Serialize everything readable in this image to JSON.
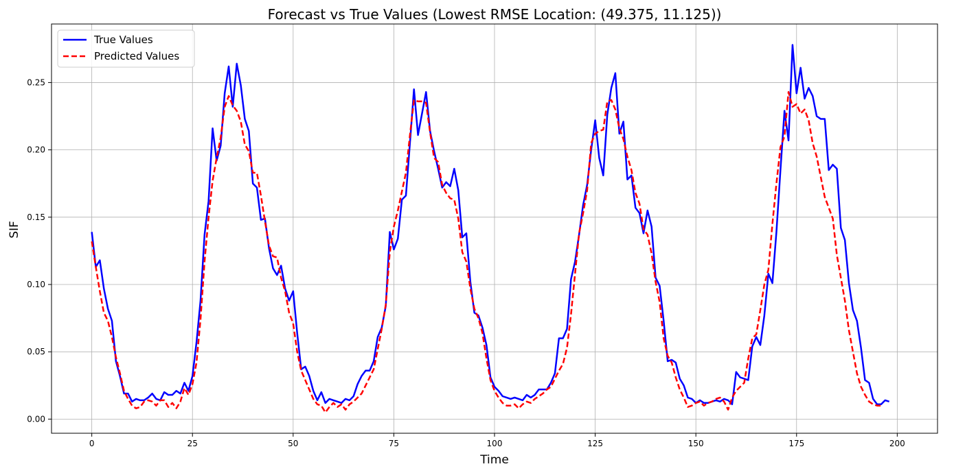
{
  "chart_data": {
    "type": "line",
    "title": "Forecast vs True Values (Lowest RMSE Location: (49.375, 11.125))",
    "xlabel": "Time",
    "ylabel": "SIF",
    "xlim": [
      -10,
      210
    ],
    "ylim": [
      -0.0105,
      0.2935
    ],
    "x_ticks": [
      0,
      25,
      50,
      75,
      100,
      125,
      150,
      175,
      200
    ],
    "x_tick_labels": [
      "0",
      "25",
      "50",
      "75",
      "100",
      "125",
      "150",
      "175",
      "200"
    ],
    "y_ticks": [
      0.0,
      0.05,
      0.1,
      0.15,
      0.2,
      0.25
    ],
    "y_tick_labels": [
      "0.00",
      "0.05",
      "0.10",
      "0.15",
      "0.20",
      "0.25"
    ],
    "grid": true,
    "legend_position": "top-left",
    "series": [
      {
        "name": "True Values",
        "color": "#0000ff",
        "style": "solid",
        "values": [
          0.139,
          0.113,
          0.118,
          0.097,
          0.082,
          0.073,
          0.043,
          0.032,
          0.019,
          0.019,
          0.013,
          0.015,
          0.014,
          0.014,
          0.016,
          0.019,
          0.015,
          0.014,
          0.02,
          0.018,
          0.018,
          0.021,
          0.019,
          0.027,
          0.021,
          0.032,
          0.057,
          0.088,
          0.137,
          0.162,
          0.216,
          0.192,
          0.203,
          0.242,
          0.262,
          0.232,
          0.264,
          0.248,
          0.223,
          0.214,
          0.175,
          0.172,
          0.148,
          0.149,
          0.127,
          0.112,
          0.107,
          0.114,
          0.097,
          0.088,
          0.095,
          0.064,
          0.037,
          0.039,
          0.032,
          0.021,
          0.014,
          0.02,
          0.012,
          0.015,
          0.014,
          0.013,
          0.012,
          0.015,
          0.014,
          0.017,
          0.026,
          0.032,
          0.036,
          0.036,
          0.043,
          0.061,
          0.068,
          0.084,
          0.139,
          0.126,
          0.134,
          0.163,
          0.166,
          0.205,
          0.245,
          0.211,
          0.227,
          0.243,
          0.214,
          0.199,
          0.186,
          0.172,
          0.176,
          0.173,
          0.186,
          0.17,
          0.135,
          0.138,
          0.102,
          0.079,
          0.077,
          0.068,
          0.055,
          0.031,
          0.024,
          0.021,
          0.017,
          0.016,
          0.015,
          0.016,
          0.015,
          0.014,
          0.018,
          0.016,
          0.018,
          0.022,
          0.022,
          0.022,
          0.027,
          0.034,
          0.06,
          0.06,
          0.067,
          0.104,
          0.117,
          0.137,
          0.159,
          0.174,
          0.2,
          0.222,
          0.194,
          0.181,
          0.226,
          0.246,
          0.257,
          0.212,
          0.221,
          0.178,
          0.181,
          0.157,
          0.153,
          0.138,
          0.155,
          0.143,
          0.105,
          0.099,
          0.073,
          0.043,
          0.044,
          0.042,
          0.03,
          0.025,
          0.016,
          0.015,
          0.012,
          0.014,
          0.012,
          0.012,
          0.013,
          0.014,
          0.013,
          0.015,
          0.014,
          0.011,
          0.035,
          0.031,
          0.03,
          0.029,
          0.054,
          0.061,
          0.055,
          0.077,
          0.108,
          0.101,
          0.139,
          0.185,
          0.229,
          0.207,
          0.278,
          0.242,
          0.261,
          0.238,
          0.246,
          0.24,
          0.225,
          0.223,
          0.223,
          0.185,
          0.189,
          0.186,
          0.142,
          0.133,
          0.101,
          0.081,
          0.073,
          0.053,
          0.029,
          0.027,
          0.015,
          0.011,
          0.011,
          0.014,
          0.013
        ]
      },
      {
        "name": "Predicted Values",
        "color": "#ff0000",
        "style": "dashed",
        "values": [
          0.132,
          0.113,
          0.095,
          0.079,
          0.073,
          0.061,
          0.046,
          0.034,
          0.021,
          0.015,
          0.01,
          0.008,
          0.009,
          0.013,
          0.014,
          0.013,
          0.01,
          0.014,
          0.014,
          0.009,
          0.012,
          0.008,
          0.013,
          0.023,
          0.018,
          0.026,
          0.042,
          0.074,
          0.117,
          0.15,
          0.177,
          0.194,
          0.209,
          0.232,
          0.24,
          0.233,
          0.229,
          0.221,
          0.204,
          0.199,
          0.183,
          0.183,
          0.166,
          0.147,
          0.129,
          0.121,
          0.12,
          0.105,
          0.095,
          0.079,
          0.071,
          0.05,
          0.036,
          0.029,
          0.022,
          0.015,
          0.011,
          0.01,
          0.005,
          0.009,
          0.012,
          0.009,
          0.011,
          0.007,
          0.011,
          0.013,
          0.016,
          0.019,
          0.025,
          0.031,
          0.037,
          0.052,
          0.067,
          0.085,
          0.124,
          0.143,
          0.155,
          0.169,
          0.183,
          0.211,
          0.237,
          0.236,
          0.236,
          0.235,
          0.213,
          0.194,
          0.191,
          0.174,
          0.168,
          0.164,
          0.163,
          0.149,
          0.124,
          0.117,
          0.097,
          0.082,
          0.075,
          0.064,
          0.045,
          0.029,
          0.021,
          0.016,
          0.012,
          0.01,
          0.01,
          0.011,
          0.008,
          0.011,
          0.013,
          0.012,
          0.015,
          0.017,
          0.019,
          0.022,
          0.024,
          0.03,
          0.036,
          0.041,
          0.053,
          0.078,
          0.108,
          0.138,
          0.153,
          0.17,
          0.205,
          0.212,
          0.214,
          0.215,
          0.236,
          0.237,
          0.23,
          0.216,
          0.208,
          0.195,
          0.185,
          0.168,
          0.16,
          0.141,
          0.137,
          0.123,
          0.102,
          0.087,
          0.06,
          0.047,
          0.042,
          0.031,
          0.022,
          0.016,
          0.009,
          0.01,
          0.012,
          0.013,
          0.01,
          0.012,
          0.013,
          0.015,
          0.016,
          0.013,
          0.007,
          0.016,
          0.021,
          0.024,
          0.027,
          0.045,
          0.06,
          0.063,
          0.081,
          0.1,
          0.111,
          0.145,
          0.175,
          0.202,
          0.21,
          0.243,
          0.232,
          0.234,
          0.227,
          0.23,
          0.222,
          0.205,
          0.195,
          0.18,
          0.165,
          0.157,
          0.149,
          0.122,
          0.105,
          0.088,
          0.066,
          0.05,
          0.034,
          0.024,
          0.018,
          0.013,
          0.011,
          0.01,
          0.01
        ]
      }
    ]
  }
}
